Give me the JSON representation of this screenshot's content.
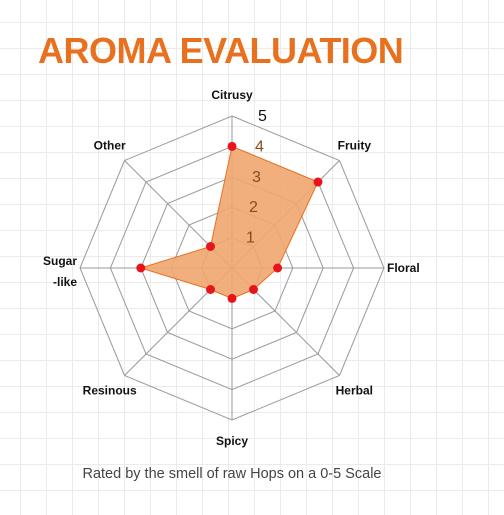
{
  "title": "AROMA EVALUATION",
  "caption": "Rated by the smell of raw Hops on a 0-5 Scale",
  "chart_data": {
    "type": "radar",
    "title": "AROMA EVALUATION",
    "categories": [
      "Citrusy",
      "Fruity",
      "Floral",
      "Herbal",
      "Spicy",
      "Resinous",
      "Sugar-like",
      "Other"
    ],
    "values": [
      4,
      4,
      1.5,
      1,
      1,
      1,
      3,
      1
    ],
    "range": [
      0,
      5
    ],
    "ticks": [
      1,
      2,
      3,
      4,
      5
    ],
    "grid": true,
    "colors": {
      "fill": "#f0a670",
      "stroke": "#e8711f",
      "point": "#e8141c",
      "grid": "#9a9a9a",
      "title": "#e8711f",
      "tick_inside": "#8a4a1a",
      "tick_outside": "#111111"
    }
  }
}
